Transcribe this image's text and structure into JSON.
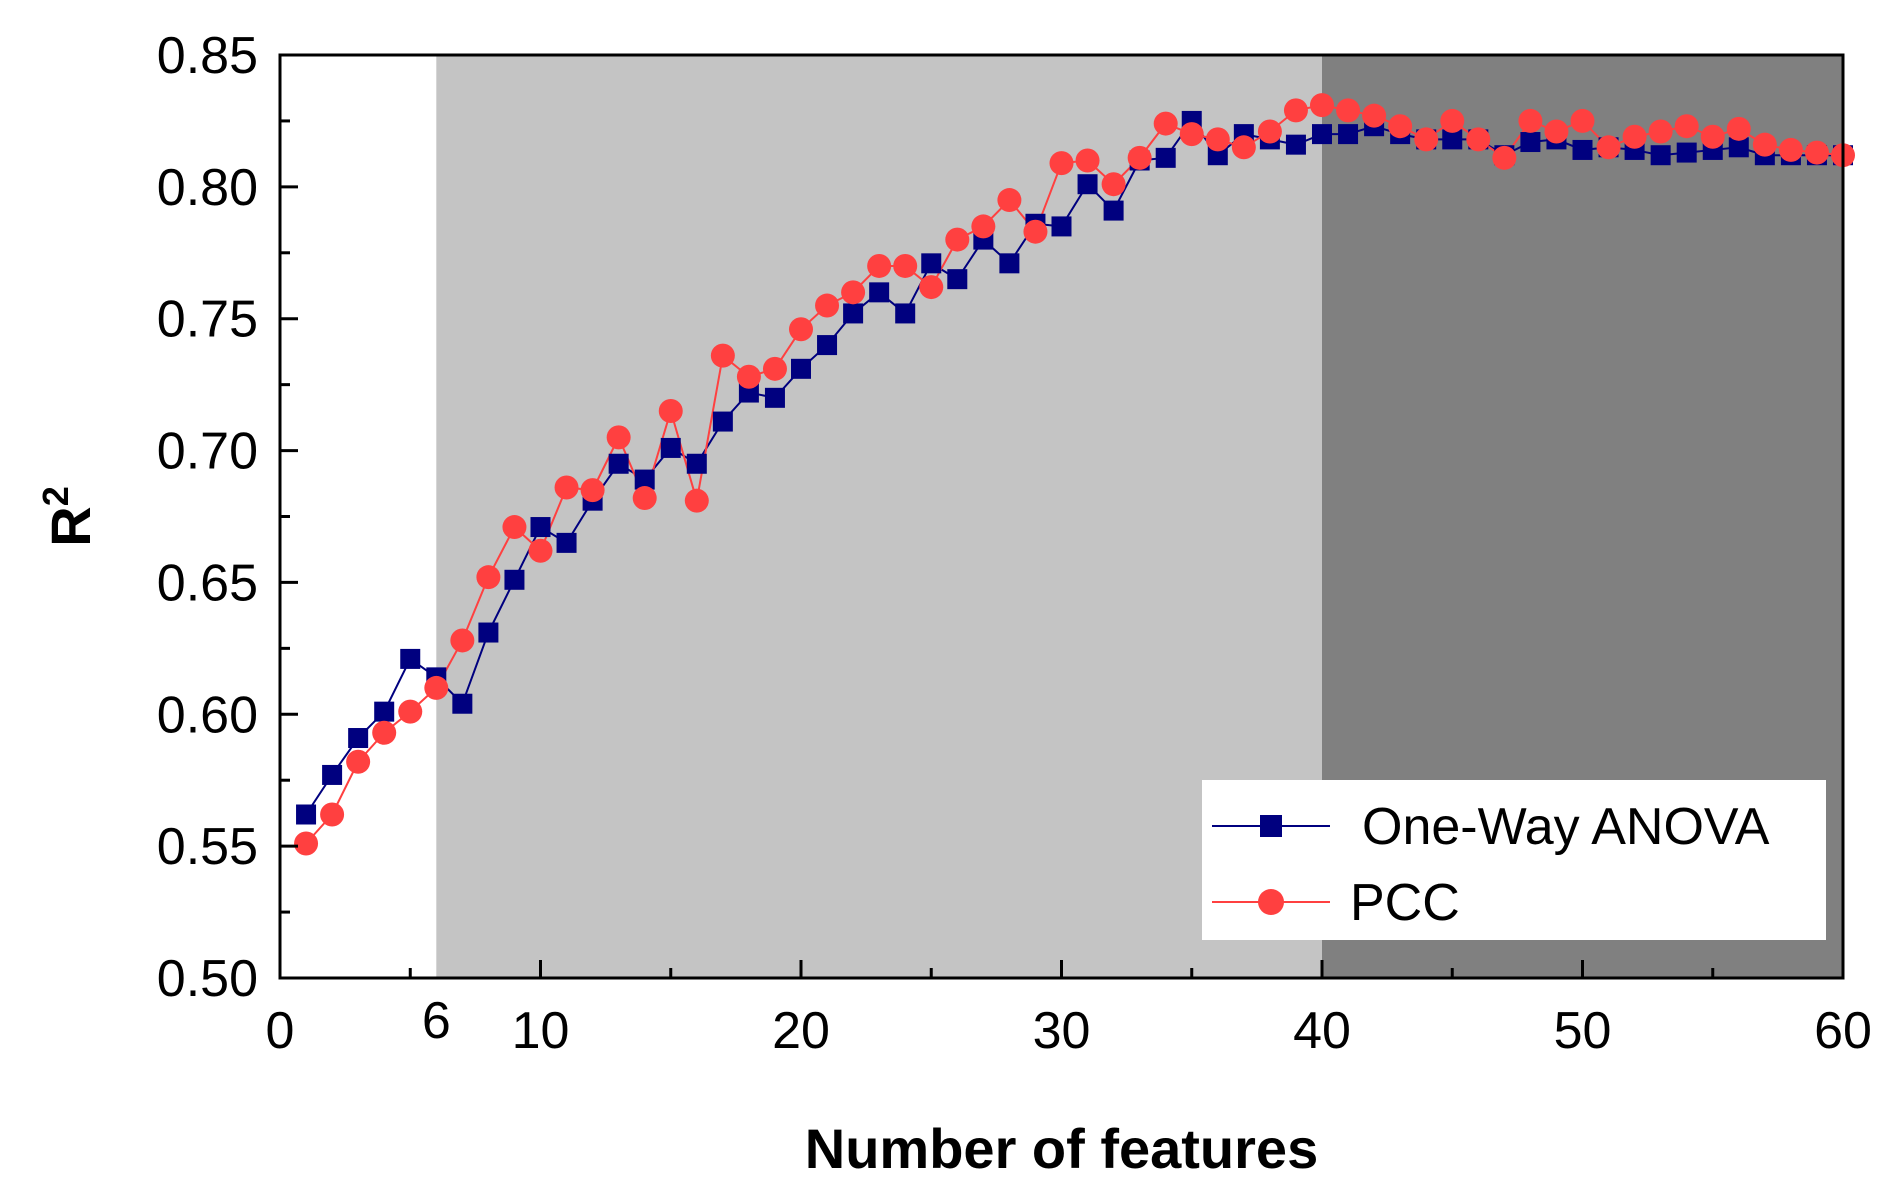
{
  "chart_data": {
    "type": "line",
    "title": "",
    "xlabel": "Number of features",
    "ylabel_base": "R",
    "ylabel_sup": "2",
    "xlim": [
      0,
      60
    ],
    "ylim": [
      0.5,
      0.85
    ],
    "x_ticks": [
      0,
      10,
      20,
      30,
      40,
      50,
      60
    ],
    "x_tick_labels": [
      "0",
      "10",
      "20",
      "30",
      "40",
      "50",
      "60"
    ],
    "x_minor_ticks": [
      5,
      15,
      25,
      35,
      45,
      55
    ],
    "y_ticks": [
      0.5,
      0.55,
      0.6,
      0.65,
      0.7,
      0.75,
      0.8,
      0.85
    ],
    "y_tick_labels": [
      "0.50",
      "0.55",
      "0.60",
      "0.65",
      "0.70",
      "0.75",
      "0.80",
      "0.85"
    ],
    "y_minor_ticks": [
      0.525,
      0.575,
      0.625,
      0.675,
      0.725,
      0.775,
      0.825
    ],
    "grid": false,
    "extra_x_label": {
      "x": 6,
      "text": "6"
    },
    "regions": [
      {
        "x_start": 6,
        "x_end": 40,
        "color": "#c4c4c4"
      },
      {
        "x_start": 40,
        "x_end": 60,
        "color": "#808080"
      }
    ],
    "legend_position": "bottom-right",
    "series": [
      {
        "name": "One-Way ANOVA",
        "marker": "square",
        "color": "#00007f",
        "x": [
          1,
          2,
          3,
          4,
          5,
          6,
          7,
          8,
          9,
          10,
          11,
          12,
          13,
          14,
          15,
          16,
          17,
          18,
          19,
          20,
          21,
          22,
          23,
          24,
          25,
          26,
          27,
          28,
          29,
          30,
          31,
          32,
          33,
          34,
          35,
          36,
          37,
          38,
          39,
          40,
          41,
          42,
          43,
          44,
          45,
          46,
          47,
          48,
          49,
          50,
          51,
          52,
          53,
          54,
          55,
          56,
          57,
          58,
          59,
          60
        ],
        "values": [
          0.562,
          0.577,
          0.591,
          0.601,
          0.621,
          0.614,
          0.604,
          0.631,
          0.651,
          0.671,
          0.665,
          0.681,
          0.695,
          0.689,
          0.701,
          0.695,
          0.711,
          0.722,
          0.72,
          0.731,
          0.74,
          0.752,
          0.76,
          0.752,
          0.771,
          0.765,
          0.78,
          0.771,
          0.786,
          0.785,
          0.801,
          0.791,
          0.81,
          0.811,
          0.825,
          0.812,
          0.82,
          0.818,
          0.816,
          0.82,
          0.82,
          0.823,
          0.82,
          0.818,
          0.818,
          0.818,
          0.812,
          0.817,
          0.818,
          0.814,
          0.815,
          0.814,
          0.812,
          0.813,
          0.814,
          0.815,
          0.812,
          0.812,
          0.812,
          0.812
        ]
      },
      {
        "name": "PCC",
        "marker": "circle",
        "color": "#ff4040",
        "x": [
          1,
          2,
          3,
          4,
          5,
          6,
          7,
          8,
          9,
          10,
          11,
          12,
          13,
          14,
          15,
          16,
          17,
          18,
          19,
          20,
          21,
          22,
          23,
          24,
          25,
          26,
          27,
          28,
          29,
          30,
          31,
          32,
          33,
          34,
          35,
          36,
          37,
          38,
          39,
          40,
          41,
          42,
          43,
          44,
          45,
          46,
          47,
          48,
          49,
          50,
          51,
          52,
          53,
          54,
          55,
          56,
          57,
          58,
          59,
          60
        ],
        "values": [
          0.551,
          0.562,
          0.582,
          0.593,
          0.601,
          0.61,
          0.628,
          0.652,
          0.671,
          0.662,
          0.686,
          0.685,
          0.705,
          0.682,
          0.715,
          0.681,
          0.736,
          0.728,
          0.731,
          0.746,
          0.755,
          0.76,
          0.77,
          0.77,
          0.762,
          0.78,
          0.785,
          0.795,
          0.783,
          0.809,
          0.81,
          0.801,
          0.811,
          0.824,
          0.82,
          0.818,
          0.815,
          0.821,
          0.829,
          0.831,
          0.829,
          0.827,
          0.823,
          0.818,
          0.825,
          0.818,
          0.811,
          0.825,
          0.821,
          0.825,
          0.815,
          0.819,
          0.821,
          0.823,
          0.819,
          0.822,
          0.816,
          0.814,
          0.813,
          0.812
        ]
      }
    ]
  }
}
